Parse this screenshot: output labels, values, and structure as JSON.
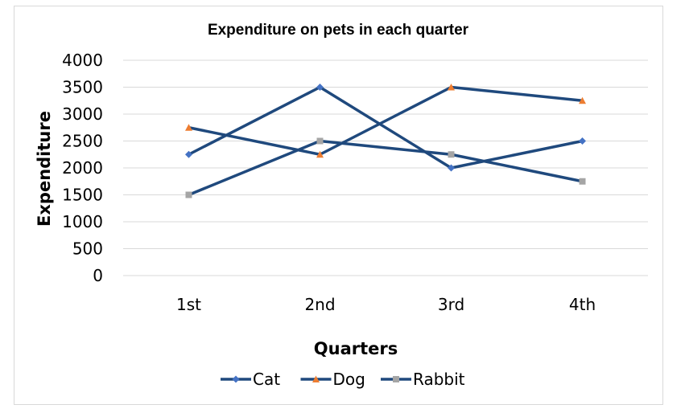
{
  "chart_data": {
    "type": "line",
    "title": "Expenditure on pets in each quarter",
    "xlabel": "Quarters",
    "ylabel": "Expenditure",
    "categories": [
      "1st",
      "2nd",
      "3rd",
      "4th"
    ],
    "ylim": [
      0,
      4000
    ],
    "yticks": [
      0,
      500,
      1000,
      1500,
      2000,
      2500,
      3000,
      3500,
      4000
    ],
    "grid": true,
    "legend_position": "bottom",
    "series": [
      {
        "name": "Cat",
        "values": [
          2250,
          3500,
          2000,
          2500
        ],
        "marker": "diamond",
        "line_color": "#1f497d",
        "marker_color": "#4472c4"
      },
      {
        "name": "Dog",
        "values": [
          2750,
          2250,
          3500,
          3250
        ],
        "marker": "triangle",
        "line_color": "#1f497d",
        "marker_color": "#ed7d31"
      },
      {
        "name": "Rabbit",
        "values": [
          1500,
          2500,
          2250,
          1750
        ],
        "marker": "square",
        "line_color": "#1f497d",
        "marker_color": "#a5a5a5"
      }
    ]
  }
}
